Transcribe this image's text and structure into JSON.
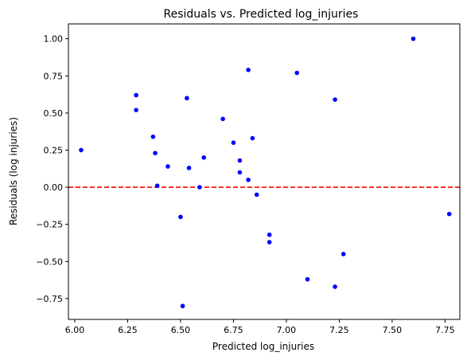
{
  "chart_data": {
    "type": "scatter",
    "title": "Residuals vs. Predicted log_injuries",
    "xlabel": "Predicted log_injuries",
    "ylabel": "Residuals (log injuries)",
    "xlim": [
      5.97,
      7.82
    ],
    "ylim": [
      -0.89,
      1.1
    ],
    "xticks": [
      6.0,
      6.25,
      6.5,
      6.75,
      7.0,
      7.25,
      7.5,
      7.75
    ],
    "xtick_labels": [
      "6.00",
      "6.25",
      "6.50",
      "6.75",
      "7.00",
      "7.25",
      "7.50",
      "7.75"
    ],
    "yticks": [
      -0.75,
      -0.5,
      -0.25,
      0.0,
      0.25,
      0.5,
      0.75,
      1.0
    ],
    "ytick_labels": [
      "−0.75",
      "−0.50",
      "−0.25",
      "0.00",
      "0.25",
      "0.50",
      "0.75",
      "1.00"
    ],
    "grid": false,
    "reference_line": {
      "y": 0.0,
      "color": "#ff0000",
      "style": "dashed"
    },
    "point_color": "#0000ff",
    "x": [
      6.03,
      6.29,
      6.29,
      6.37,
      6.38,
      6.39,
      6.44,
      6.5,
      6.51,
      6.53,
      6.54,
      6.59,
      6.61,
      6.7,
      6.75,
      6.78,
      6.78,
      6.82,
      6.82,
      6.84,
      6.86,
      6.92,
      6.92,
      7.05,
      7.1,
      7.23,
      7.23,
      7.27,
      7.6,
      7.77
    ],
    "y": [
      0.25,
      0.62,
      0.52,
      0.34,
      0.23,
      0.01,
      0.14,
      -0.2,
      -0.8,
      0.6,
      0.13,
      0.0,
      0.2,
      0.46,
      0.3,
      0.1,
      0.18,
      0.79,
      0.05,
      0.33,
      -0.05,
      -0.32,
      -0.37,
      0.77,
      -0.62,
      0.59,
      -0.67,
      -0.45,
      1.0,
      -0.18
    ]
  }
}
